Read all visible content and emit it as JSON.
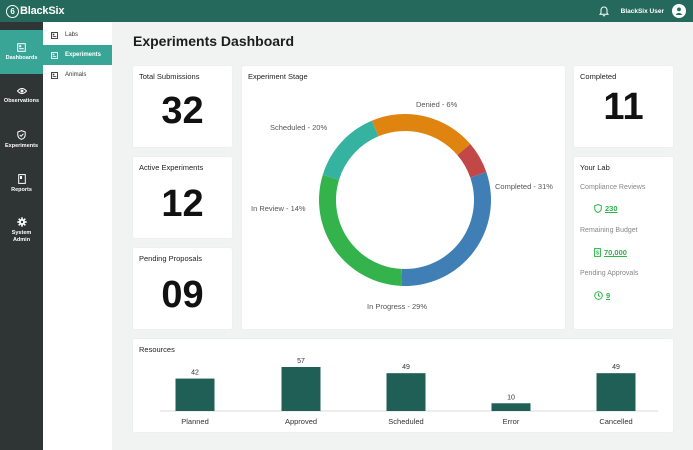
{
  "app": {
    "name": "BlackSix",
    "logo_glyph": "6"
  },
  "header": {
    "user_name": "BlackSix User"
  },
  "rail": {
    "items": [
      {
        "label_lines": [
          "Dashboards"
        ],
        "icon": "dashboard-icon",
        "active": true
      },
      {
        "label_lines": [
          "Observations"
        ],
        "icon": "eye-icon",
        "active": false
      },
      {
        "label_lines": [
          "Experiments"
        ],
        "icon": "shield-check-icon",
        "active": false
      },
      {
        "label_lines": [
          "Reports"
        ],
        "icon": "report-icon",
        "active": false
      },
      {
        "label_lines": [
          "System",
          "Admin"
        ],
        "icon": "gear-icon",
        "active": false
      }
    ]
  },
  "subnav": {
    "items": [
      {
        "label": "Labs",
        "active": false
      },
      {
        "label": "Experiments",
        "active": true
      },
      {
        "label": "Animals",
        "active": false
      }
    ]
  },
  "page": {
    "title": "Experiments Dashboard"
  },
  "stats": {
    "total_submissions": {
      "title": "Total Submissions",
      "value": "32"
    },
    "active_experiments": {
      "title": "Active Experiments",
      "value": "12"
    },
    "pending_proposals": {
      "title": "Pending Proposals",
      "value": "09"
    },
    "completed": {
      "title": "Completed",
      "value": "11"
    }
  },
  "your_lab": {
    "title": "Your Lab",
    "rows": [
      {
        "label": "Compliance Reviews",
        "value": "230",
        "icon": "shield-icon"
      },
      {
        "label": "Remaining Budget",
        "value": "70,000",
        "icon": "document-dollar-icon"
      },
      {
        "label": "Pending Approvals",
        "value": "9",
        "icon": "clock-icon"
      }
    ],
    "accent_color": "#2db34a"
  },
  "chart_data": [
    {
      "type": "pie",
      "title": "Experiment Stage",
      "donut": true,
      "slices": [
        {
          "label": "Completed",
          "value": 31,
          "color": "#3f7fb5"
        },
        {
          "label": "In Progress",
          "value": 29,
          "color": "#34b34d"
        },
        {
          "label": "In Review",
          "value": 14,
          "color": "#35b3a0"
        },
        {
          "label": "Scheduled",
          "value": 20,
          "color": "#e08410"
        },
        {
          "label": "Denied",
          "value": 6,
          "color": "#c24747"
        }
      ]
    },
    {
      "type": "bar",
      "title": "Resources",
      "categories": [
        "Planned",
        "Approved",
        "Scheduled",
        "Error",
        "Cancelled"
      ],
      "values": [
        42,
        57,
        49,
        10,
        49
      ],
      "bar_color": "#1f5f55",
      "ylim": [
        0,
        57
      ]
    }
  ]
}
